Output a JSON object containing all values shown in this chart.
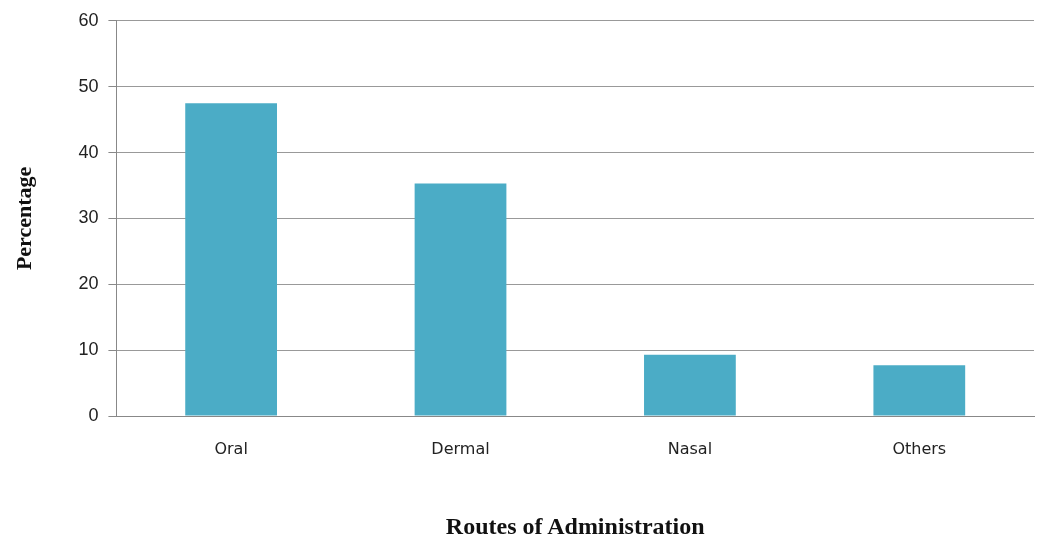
{
  "chart_data": {
    "type": "bar",
    "xlabel": "Routes of Administration",
    "ylabel": "Percentage",
    "categories": [
      "Oral",
      "Dermal",
      "Nasal",
      "Others"
    ],
    "values": [
      47.5,
      35.3,
      9.3,
      7.7
    ],
    "color": "#4bacc6",
    "ylim": [
      0,
      60
    ],
    "yticks": [
      0,
      10,
      20,
      30,
      40,
      50,
      60
    ],
    "grid": "y",
    "legend": false
  }
}
